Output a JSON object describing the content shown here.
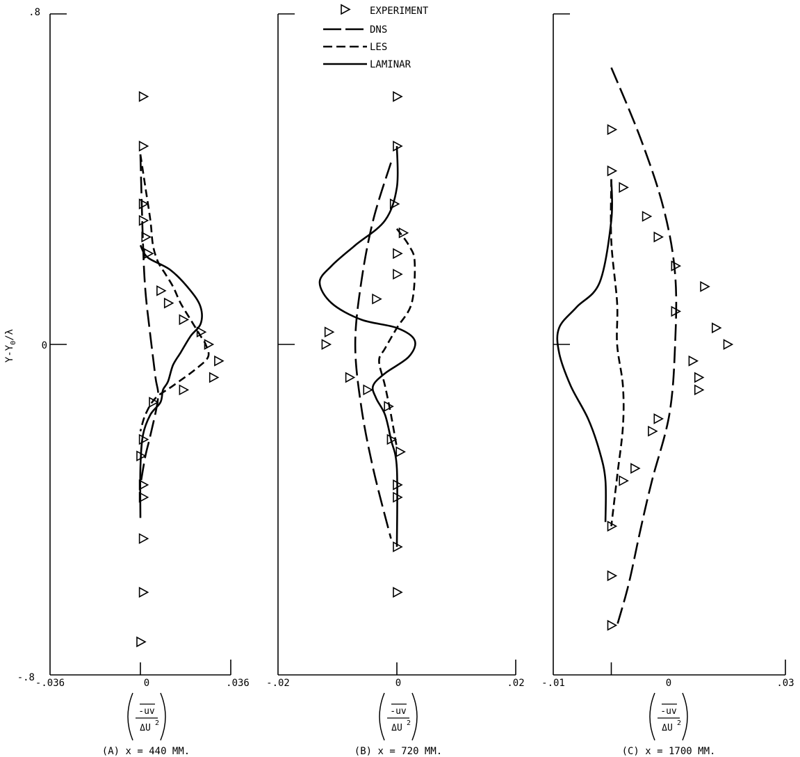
{
  "figure": {
    "ylabel": "Y-Y0/λ",
    "ylabel_main": "Y-Y",
    "ylabel_sub": "0",
    "ylabel_tail": "/λ",
    "yticks": [
      ".8",
      "0",
      "-.8"
    ],
    "xlabel_numerator": "-uv",
    "xlabel_denominator_base": "ΔU",
    "xlabel_denominator_exp": "2"
  },
  "legend": {
    "entries": [
      "EXPERIMENT",
      "DNS",
      "LES",
      "LAMINAR"
    ]
  },
  "colors": {
    "ink": "#000000",
    "background": "#ffffff"
  },
  "chart_data": [
    {
      "type": "line",
      "caption": "(A) x = 440 MM.",
      "xlim": [
        -0.036,
        0.036
      ],
      "ylim": [
        -0.8,
        0.8
      ],
      "xticks": [
        "-.036",
        "0",
        ".036"
      ],
      "series": [
        {
          "name": "EXPERIMENT",
          "style": "markers",
          "points": [
            [
              0.001,
              0.6
            ],
            [
              0.001,
              0.48
            ],
            [
              0.001,
              0.34
            ],
            [
              0.001,
              0.3
            ],
            [
              0.002,
              0.26
            ],
            [
              0.003,
              0.22
            ],
            [
              0.008,
              0.13
            ],
            [
              0.011,
              0.1
            ],
            [
              0.017,
              0.06
            ],
            [
              0.024,
              0.03
            ],
            [
              0.027,
              0.0
            ],
            [
              0.031,
              -0.04
            ],
            [
              0.029,
              -0.08
            ],
            [
              0.017,
              -0.11
            ],
            [
              0.005,
              -0.14
            ],
            [
              0.001,
              -0.23
            ],
            [
              0.0,
              -0.27
            ],
            [
              0.001,
              -0.34
            ],
            [
              0.001,
              -0.37
            ],
            [
              0.001,
              -0.47
            ],
            [
              0.001,
              -0.6
            ],
            [
              0.0,
              -0.72
            ]
          ]
        },
        {
          "name": "DNS",
          "style": "solid",
          "points": [
            [
              0.0,
              0.24
            ],
            [
              0.003,
              0.21
            ],
            [
              0.012,
              0.18
            ],
            [
              0.02,
              0.13
            ],
            [
              0.024,
              0.09
            ],
            [
              0.024,
              0.05
            ],
            [
              0.02,
              0.02
            ],
            [
              0.016,
              -0.02
            ],
            [
              0.013,
              -0.05
            ],
            [
              0.011,
              -0.09
            ],
            [
              0.009,
              -0.11
            ],
            [
              0.008,
              -0.14
            ],
            [
              0.004,
              -0.17
            ],
            [
              0.001,
              -0.22
            ],
            [
              0.0,
              -0.3
            ],
            [
              0.0,
              -0.42
            ]
          ]
        },
        {
          "name": "LES",
          "style": "dashed",
          "points": [
            [
              0.0,
              0.46
            ],
            [
              0.002,
              0.38
            ],
            [
              0.004,
              0.3
            ],
            [
              0.005,
              0.24
            ],
            [
              0.007,
              0.2
            ],
            [
              0.01,
              0.17
            ],
            [
              0.013,
              0.14
            ],
            [
              0.016,
              0.1
            ],
            [
              0.02,
              0.06
            ],
            [
              0.024,
              0.02
            ],
            [
              0.026,
              0.0
            ],
            [
              0.027,
              -0.03
            ],
            [
              0.022,
              -0.06
            ],
            [
              0.013,
              -0.1
            ],
            [
              0.006,
              -0.13
            ],
            [
              0.002,
              -0.17
            ],
            [
              0.0,
              -0.21
            ]
          ]
        },
        {
          "name": "LAMINAR",
          "style": "long-dashed",
          "points": [
            [
              0.0,
              0.46
            ],
            [
              0.001,
              0.25
            ],
            [
              0.002,
              0.13
            ],
            [
              0.004,
              0.02
            ],
            [
              0.006,
              -0.08
            ],
            [
              0.007,
              -0.13
            ],
            [
              0.004,
              -0.22
            ],
            [
              0.002,
              -0.27
            ],
            [
              0.0,
              -0.34
            ]
          ]
        }
      ]
    },
    {
      "type": "line",
      "caption": "(B) x = 720 MM.",
      "xlim": [
        -0.02,
        0.02
      ],
      "ylim": [
        -0.8,
        0.8
      ],
      "xticks": [
        "-.02",
        "0",
        ".02"
      ],
      "series": [
        {
          "name": "EXPERIMENT",
          "style": "markers",
          "points": [
            [
              0.0,
              0.6
            ],
            [
              0.0,
              0.48
            ],
            [
              -0.0005,
              0.34
            ],
            [
              0.001,
              0.27
            ],
            [
              0.0,
              0.22
            ],
            [
              0.0,
              0.17
            ],
            [
              -0.0035,
              0.11
            ],
            [
              -0.0115,
              0.03
            ],
            [
              -0.012,
              0.0
            ],
            [
              -0.008,
              -0.08
            ],
            [
              -0.005,
              -0.11
            ],
            [
              -0.0015,
              -0.15
            ],
            [
              -0.001,
              -0.23
            ],
            [
              0.0005,
              -0.26
            ],
            [
              0.0,
              -0.34
            ],
            [
              0.0,
              -0.37
            ],
            [
              0.0,
              -0.49
            ],
            [
              0.0,
              -0.6
            ]
          ]
        },
        {
          "name": "DNS",
          "style": "solid",
          "points": [
            [
              0.0,
              0.48
            ],
            [
              0.0,
              0.38
            ],
            [
              -0.002,
              0.3
            ],
            [
              -0.007,
              0.24
            ],
            [
              -0.011,
              0.19
            ],
            [
              -0.013,
              0.15
            ],
            [
              -0.011,
              0.1
            ],
            [
              -0.006,
              0.06
            ],
            [
              0.0,
              0.04
            ],
            [
              0.003,
              0.01
            ],
            [
              0.002,
              -0.03
            ],
            [
              -0.002,
              -0.07
            ],
            [
              -0.004,
              -0.1
            ],
            [
              -0.0035,
              -0.13
            ],
            [
              -0.002,
              -0.17
            ],
            [
              -0.001,
              -0.23
            ],
            [
              0.0,
              -0.3
            ],
            [
              0.0,
              -0.49
            ]
          ]
        },
        {
          "name": "LES",
          "style": "dashed",
          "points": [
            [
              0.0,
              0.28
            ],
            [
              0.002,
              0.24
            ],
            [
              0.003,
              0.2
            ],
            [
              0.0025,
              0.1
            ],
            [
              0.0,
              0.04
            ],
            [
              -0.002,
              -0.01
            ],
            [
              -0.003,
              -0.04
            ],
            [
              -0.002,
              -0.1
            ],
            [
              -0.001,
              -0.17
            ],
            [
              0.0,
              -0.25
            ]
          ]
        },
        {
          "name": "LAMINAR",
          "style": "long-dashed",
          "points": [
            [
              -0.001,
              0.44
            ],
            [
              -0.004,
              0.3
            ],
            [
              -0.006,
              0.15
            ],
            [
              -0.007,
              0.0
            ],
            [
              -0.006,
              -0.15
            ],
            [
              -0.004,
              -0.3
            ],
            [
              -0.001,
              -0.47
            ]
          ]
        }
      ]
    },
    {
      "type": "line",
      "caption": "(C) x = 1700 MM.",
      "xlim": [
        -0.01,
        0.03
      ],
      "ylim": [
        -0.8,
        0.8
      ],
      "xticks": [
        "-.01",
        "0",
        ".03"
      ],
      "series": [
        {
          "name": "EXPERIMENT",
          "style": "markers",
          "points": [
            [
              0.0,
              0.52
            ],
            [
              0.0,
              0.42
            ],
            [
              0.002,
              0.38
            ],
            [
              0.006,
              0.31
            ],
            [
              0.008,
              0.26
            ],
            [
              0.011,
              0.19
            ],
            [
              0.016,
              0.14
            ],
            [
              0.011,
              0.08
            ],
            [
              0.018,
              0.04
            ],
            [
              0.02,
              0.0
            ],
            [
              0.014,
              -0.04
            ],
            [
              0.015,
              -0.08
            ],
            [
              0.015,
              -0.11
            ],
            [
              0.008,
              -0.18
            ],
            [
              0.007,
              -0.21
            ],
            [
              0.004,
              -0.3
            ],
            [
              0.002,
              -0.33
            ],
            [
              0.0,
              -0.44
            ],
            [
              0.0,
              -0.56
            ],
            [
              0.0,
              -0.68
            ]
          ]
        },
        {
          "name": "DNS",
          "style": "solid",
          "points": [
            [
              0.0,
              0.4
            ],
            [
              0.0,
              0.3
            ],
            [
              -0.002,
              0.15
            ],
            [
              -0.006,
              0.09
            ],
            [
              -0.009,
              0.04
            ],
            [
              -0.009,
              -0.02
            ],
            [
              -0.007,
              -0.1
            ],
            [
              -0.004,
              -0.18
            ],
            [
              -0.002,
              -0.26
            ],
            [
              -0.001,
              -0.33
            ],
            [
              -0.001,
              -0.43
            ]
          ]
        },
        {
          "name": "LES",
          "style": "dashed",
          "points": [
            [
              0.0,
              0.4
            ],
            [
              0.0,
              0.25
            ],
            [
              0.001,
              0.1
            ],
            [
              0.001,
              0.0
            ],
            [
              0.002,
              -0.1
            ],
            [
              0.002,
              -0.2
            ],
            [
              0.001,
              -0.32
            ],
            [
              0.0,
              -0.44
            ]
          ]
        },
        {
          "name": "LAMINAR",
          "style": "long-dashed",
          "points": [
            [
              0.0,
              0.67
            ],
            [
              0.005,
              0.5
            ],
            [
              0.009,
              0.33
            ],
            [
              0.011,
              0.17
            ],
            [
              0.011,
              0.0
            ],
            [
              0.01,
              -0.17
            ],
            [
              0.007,
              -0.33
            ],
            [
              0.005,
              -0.45
            ],
            [
              0.003,
              -0.58
            ],
            [
              0.001,
              -0.68
            ]
          ]
        }
      ]
    }
  ]
}
